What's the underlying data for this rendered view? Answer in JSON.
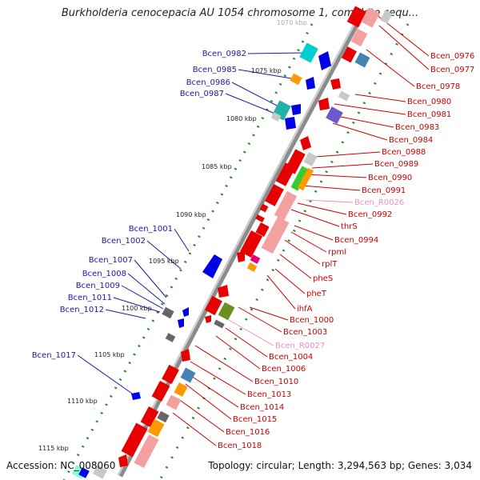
{
  "title": "Burkholderia cenocepacia AU 1054 chromosome 1, complete sequ...",
  "footer": {
    "accession": "Accession: NC_008060",
    "topology": "Topology: circular; Length: 3,294,563 bp; Genes: 3,034"
  },
  "ruler": [
    {
      "label": "1070 kbp"
    },
    {
      "label": "1075 kbp"
    },
    {
      "label": "1080 kbp"
    },
    {
      "label": "1085 kbp"
    },
    {
      "label": "1090 kbp"
    },
    {
      "label": "1095 kbp"
    },
    {
      "label": "1100 kbp"
    },
    {
      "label": "1105 kbp"
    },
    {
      "label": "1110 kbp"
    },
    {
      "label": "1115 kbp"
    }
  ],
  "genes_left": [
    {
      "label": "Bcen_0982",
      "color": "#1a1aa6"
    },
    {
      "label": "Bcen_0985",
      "color": "#1a1aa6"
    },
    {
      "label": "Bcen_0986",
      "color": "#1a1aa6"
    },
    {
      "label": "Bcen_0987",
      "color": "#1a1aa6"
    },
    {
      "label": "Bcen_1001",
      "color": "#1a1aa6"
    },
    {
      "label": "Bcen_1002",
      "color": "#1a1aa6"
    },
    {
      "label": "Bcen_1007",
      "color": "#1a1aa6"
    },
    {
      "label": "Bcen_1008",
      "color": "#1a1aa6"
    },
    {
      "label": "Bcen_1009",
      "color": "#1a1aa6"
    },
    {
      "label": "Bcen_1011",
      "color": "#1a1aa6"
    },
    {
      "label": "Bcen_1012",
      "color": "#1a1aa6"
    },
    {
      "label": "Bcen_1017",
      "color": "#1a1aa6"
    }
  ],
  "genes_right": [
    {
      "label": "Bcen_0976",
      "color": "#cc0000"
    },
    {
      "label": "Bcen_0977",
      "color": "#cc0000"
    },
    {
      "label": "Bcen_0978",
      "color": "#cc0000"
    },
    {
      "label": "Bcen_0980",
      "color": "#cc0000"
    },
    {
      "label": "Bcen_0981",
      "color": "#cc0000"
    },
    {
      "label": "Bcen_0983",
      "color": "#cc0000"
    },
    {
      "label": "Bcen_0984",
      "color": "#cc0000"
    },
    {
      "label": "Bcen_0988",
      "color": "#cc0000"
    },
    {
      "label": "Bcen_0989",
      "color": "#cc0000"
    },
    {
      "label": "Bcen_0990",
      "color": "#cc0000"
    },
    {
      "label": "Bcen_0991",
      "color": "#cc0000"
    },
    {
      "label": "Bcen_R0026",
      "color": "#f08fc0"
    },
    {
      "label": "Bcen_0992",
      "color": "#cc0000"
    },
    {
      "label": "thrS",
      "color": "#cc0000"
    },
    {
      "label": "Bcen_0994",
      "color": "#cc0000"
    },
    {
      "label": "rpmI",
      "color": "#cc0000"
    },
    {
      "label": "rplT",
      "color": "#cc0000"
    },
    {
      "label": "pheS",
      "color": "#cc0000"
    },
    {
      "label": "pheT",
      "color": "#cc0000"
    },
    {
      "label": "ihfA",
      "color": "#cc0000"
    },
    {
      "label": "Bcen_1000",
      "color": "#cc0000"
    },
    {
      "label": "Bcen_1003",
      "color": "#cc0000"
    },
    {
      "label": "Bcen_R0027",
      "color": "#f08fc0"
    },
    {
      "label": "Bcen_1004",
      "color": "#cc0000"
    },
    {
      "label": "Bcen_1006",
      "color": "#cc0000"
    },
    {
      "label": "Bcen_1010",
      "color": "#cc0000"
    },
    {
      "label": "Bcen_1013",
      "color": "#cc0000"
    },
    {
      "label": "Bcen_1014",
      "color": "#cc0000"
    },
    {
      "label": "Bcen_1015",
      "color": "#cc0000"
    },
    {
      "label": "Bcen_1016",
      "color": "#cc0000"
    },
    {
      "label": "Bcen_1018",
      "color": "#cc0000"
    }
  ],
  "colors": {
    "backbone": "#8c8c8c",
    "forward_strand": "#e60000",
    "forward_light": "#f08c8c",
    "reverse_strand": "#1a1ae6",
    "ruler_dots": "#228b22"
  }
}
